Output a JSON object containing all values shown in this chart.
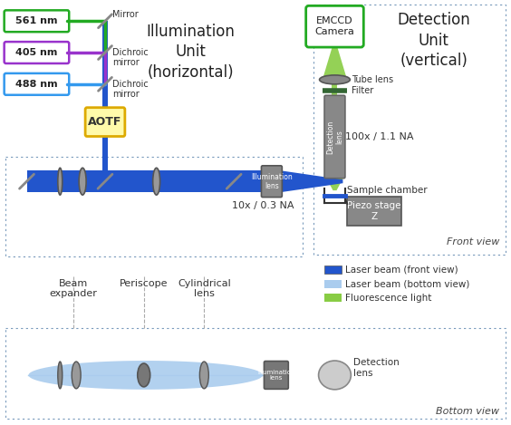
{
  "fig_width": 5.64,
  "fig_height": 4.69,
  "dpi": 100,
  "bg_color": "#ffffff",
  "dotted_box_color": "#7799bb",
  "laser_colors": {
    "561": "#22aa22",
    "405": "#9933cc",
    "488": "#3399ee"
  },
  "laser_labels": [
    "561 nm",
    "405 nm",
    "488 nm"
  ],
  "laser_box_colors": [
    "#22aa22",
    "#9933cc",
    "#3399ee"
  ],
  "beam_dark_blue": "#2255cc",
  "beam_light_blue": "#aaccee",
  "green_beam": "#88cc44",
  "aotf_border": "#ddaa00",
  "aotf_fill": "#fffaaa",
  "component_gray": "#888888",
  "component_mid": "#999999",
  "component_dark": "#555555",
  "illumination_unit_title": "Illumination\nUnit\n(horizontal)",
  "detection_unit_title": "Detection\nUnit\n(vertical)",
  "emccd_label": "EMCCD\nCamera",
  "legend_items": [
    {
      "label": "Laser beam (front view)",
      "color": "#2255cc"
    },
    {
      "label": "Laser beam (bottom view)",
      "color": "#aaccee"
    },
    {
      "label": "Fluorescence light",
      "color": "#88cc44"
    }
  ],
  "labels": {
    "mirror": "Mirror",
    "dichroic1": "Dichroic\nmirror",
    "dichroic2": "Dichroic\nmirror",
    "aotf": "AOTF",
    "beam_expander": "Beam\nexpander",
    "periscope": "Periscope",
    "cylindrical_lens": "Cylindrical\nlens",
    "tube_lens": "Tube lens",
    "filter": "Filter",
    "obj_label": "100x / 1.1 NA",
    "sample_chamber": "Sample chamber",
    "piezo": "Piezo stage\nZ",
    "illumination_lens_obj": "10x / 0.3 NA",
    "detection_lens_label": "Detection\nlens",
    "front_view": "Front view",
    "bottom_view": "Bottom view"
  }
}
